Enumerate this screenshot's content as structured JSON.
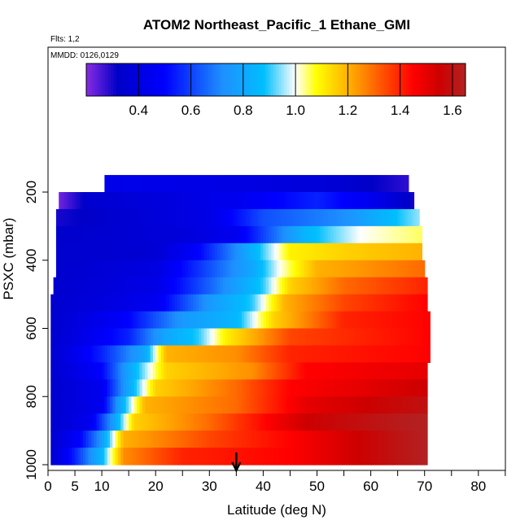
{
  "chart_data": {
    "type": "heatmap",
    "title": "ATOM2 Northeast_Pacific_1 Ethane_GMI",
    "flights_label": "Flts: 1,2",
    "dates_label": "MMDD: 0126,0129",
    "xlabel": "Latitude (deg N)",
    "ylabel": "PSXC (mbar)",
    "xlim": [
      0,
      85
    ],
    "ylim": [
      1000,
      100
    ],
    "x_ticks": [
      0,
      5,
      10,
      20,
      30,
      40,
      50,
      60,
      70,
      80
    ],
    "y_ticks": [
      200,
      400,
      600,
      800,
      1000
    ],
    "colorbar": {
      "range": [
        0.2,
        1.65
      ],
      "ticks": [
        0.4,
        0.6,
        0.8,
        1.0,
        1.2,
        1.4,
        1.6
      ],
      "tick_labels": [
        "0.4",
        "0.6",
        "0.8",
        "1.0",
        "1.2",
        "1.4",
        "1.6"
      ],
      "colors": [
        "#8a2be2",
        "#0000c8",
        "#0000ff",
        "#1e90ff",
        "#00bfff",
        "#ffffff",
        "#ffff00",
        "#ffa500",
        "#ff4500",
        "#ff0000",
        "#cd0000",
        "#b22222"
      ]
    },
    "arrow_latitude": 35,
    "pressure_levels": [
      175,
      225,
      275,
      325,
      375,
      425,
      475,
      525,
      575,
      625,
      675,
      725,
      775,
      825,
      875,
      925,
      975
    ],
    "rows": [
      {
        "pressure": 175,
        "lat_start": 10.5,
        "lat_end": 67,
        "values": [
          [
            10.5,
            0.43
          ],
          [
            30,
            0.42
          ],
          [
            50,
            0.38
          ],
          [
            67,
            0.28
          ]
        ]
      },
      {
        "pressure": 225,
        "lat_start": 2,
        "lat_end": 68,
        "values": [
          [
            2,
            0.22
          ],
          [
            8,
            0.35
          ],
          [
            25,
            0.4
          ],
          [
            35,
            0.45
          ],
          [
            50,
            0.55
          ],
          [
            60,
            0.45
          ],
          [
            68,
            0.3
          ]
        ]
      },
      {
        "pressure": 275,
        "lat_start": 1.5,
        "lat_end": 69,
        "values": [
          [
            1.5,
            0.3
          ],
          [
            20,
            0.38
          ],
          [
            30,
            0.42
          ],
          [
            40,
            0.62
          ],
          [
            55,
            0.72
          ],
          [
            69,
            0.95
          ]
        ]
      },
      {
        "pressure": 325,
        "lat_start": 1.5,
        "lat_end": 69.5,
        "values": [
          [
            1.5,
            0.33
          ],
          [
            25,
            0.38
          ],
          [
            35,
            0.45
          ],
          [
            40,
            0.6
          ],
          [
            48,
            0.85
          ],
          [
            58,
            1.0
          ],
          [
            69.5,
            1.05
          ]
        ]
      },
      {
        "pressure": 375,
        "lat_start": 1.5,
        "lat_end": 69.5,
        "values": [
          [
            1.5,
            0.34
          ],
          [
            20,
            0.36
          ],
          [
            28,
            0.5
          ],
          [
            35,
            0.72
          ],
          [
            45,
            1.1
          ],
          [
            55,
            1.15
          ],
          [
            69.5,
            1.2
          ]
        ]
      },
      {
        "pressure": 425,
        "lat_start": 1.5,
        "lat_end": 70,
        "values": [
          [
            1.5,
            0.34
          ],
          [
            20,
            0.4
          ],
          [
            30,
            0.62
          ],
          [
            38,
            0.8
          ],
          [
            43,
            1.0
          ],
          [
            50,
            1.2
          ],
          [
            70,
            1.3
          ]
        ]
      },
      {
        "pressure": 475,
        "lat_start": 1,
        "lat_end": 70.5,
        "values": [
          [
            1,
            0.34
          ],
          [
            20,
            0.42
          ],
          [
            30,
            0.65
          ],
          [
            40,
            0.9
          ],
          [
            45,
            1.15
          ],
          [
            55,
            1.3
          ],
          [
            70.5,
            1.4
          ]
        ]
      },
      {
        "pressure": 525,
        "lat_start": 0.5,
        "lat_end": 70.5,
        "values": [
          [
            0.5,
            0.34
          ],
          [
            20,
            0.45
          ],
          [
            30,
            0.75
          ],
          [
            38,
            0.9
          ],
          [
            44,
            1.2
          ],
          [
            55,
            1.35
          ],
          [
            70.5,
            1.45
          ]
        ]
      },
      {
        "pressure": 575,
        "lat_start": 0.5,
        "lat_end": 71,
        "values": [
          [
            0.5,
            0.34
          ],
          [
            15,
            0.5
          ],
          [
            25,
            0.75
          ],
          [
            35,
            0.85
          ],
          [
            42,
            1.15
          ],
          [
            55,
            1.4
          ],
          [
            71,
            1.45
          ]
        ]
      },
      {
        "pressure": 625,
        "lat_start": 0.5,
        "lat_end": 71,
        "values": [
          [
            0.5,
            0.34
          ],
          [
            15,
            0.55
          ],
          [
            22,
            0.8
          ],
          [
            28,
            0.9
          ],
          [
            33,
            1.1
          ],
          [
            45,
            1.35
          ],
          [
            71,
            1.45
          ]
        ]
      },
      {
        "pressure": 675,
        "lat_start": 0.5,
        "lat_end": 71,
        "values": [
          [
            0.5,
            0.34
          ],
          [
            10,
            0.55
          ],
          [
            18,
            0.8
          ],
          [
            22,
            1.2
          ],
          [
            35,
            1.25
          ],
          [
            45,
            1.4
          ],
          [
            71,
            1.45
          ]
        ]
      },
      {
        "pressure": 725,
        "lat_start": 0.5,
        "lat_end": 70.5,
        "values": [
          [
            0.5,
            0.34
          ],
          [
            10,
            0.5
          ],
          [
            17,
            0.9
          ],
          [
            22,
            1.15
          ],
          [
            38,
            1.25
          ],
          [
            48,
            1.45
          ],
          [
            70.5,
            1.5
          ]
        ]
      },
      {
        "pressure": 775,
        "lat_start": 0.5,
        "lat_end": 70.5,
        "values": [
          [
            0.5,
            0.34
          ],
          [
            10,
            0.45
          ],
          [
            15,
            0.8
          ],
          [
            20,
            1.15
          ],
          [
            35,
            1.3
          ],
          [
            45,
            1.45
          ],
          [
            70.5,
            1.55
          ]
        ]
      },
      {
        "pressure": 825,
        "lat_start": 0.5,
        "lat_end": 70.5,
        "values": [
          [
            0.5,
            0.34
          ],
          [
            10,
            0.45
          ],
          [
            14,
            0.85
          ],
          [
            18,
            1.2
          ],
          [
            35,
            1.3
          ],
          [
            48,
            1.5
          ],
          [
            70.5,
            1.6
          ]
        ]
      },
      {
        "pressure": 875,
        "lat_start": 0.5,
        "lat_end": 70.5,
        "values": [
          [
            0.5,
            0.34
          ],
          [
            8,
            0.45
          ],
          [
            12,
            0.75
          ],
          [
            16,
            1.15
          ],
          [
            30,
            1.3
          ],
          [
            48,
            1.55
          ],
          [
            70.5,
            1.65
          ]
        ]
      },
      {
        "pressure": 925,
        "lat_start": 0.5,
        "lat_end": 70.5,
        "values": [
          [
            0.5,
            0.34
          ],
          [
            6,
            0.5
          ],
          [
            10,
            0.75
          ],
          [
            14,
            1.2
          ],
          [
            30,
            1.35
          ],
          [
            45,
            1.45
          ],
          [
            70.5,
            1.65
          ]
        ]
      },
      {
        "pressure": 975,
        "lat_start": 0.5,
        "lat_end": 70.5,
        "values": [
          [
            0.5,
            0.34
          ],
          [
            5,
            0.55
          ],
          [
            10,
            0.85
          ],
          [
            14,
            1.25
          ],
          [
            25,
            1.4
          ],
          [
            45,
            1.45
          ],
          [
            70.5,
            1.65
          ]
        ]
      }
    ],
    "grid": false,
    "legend_placement": "top colorbar"
  }
}
